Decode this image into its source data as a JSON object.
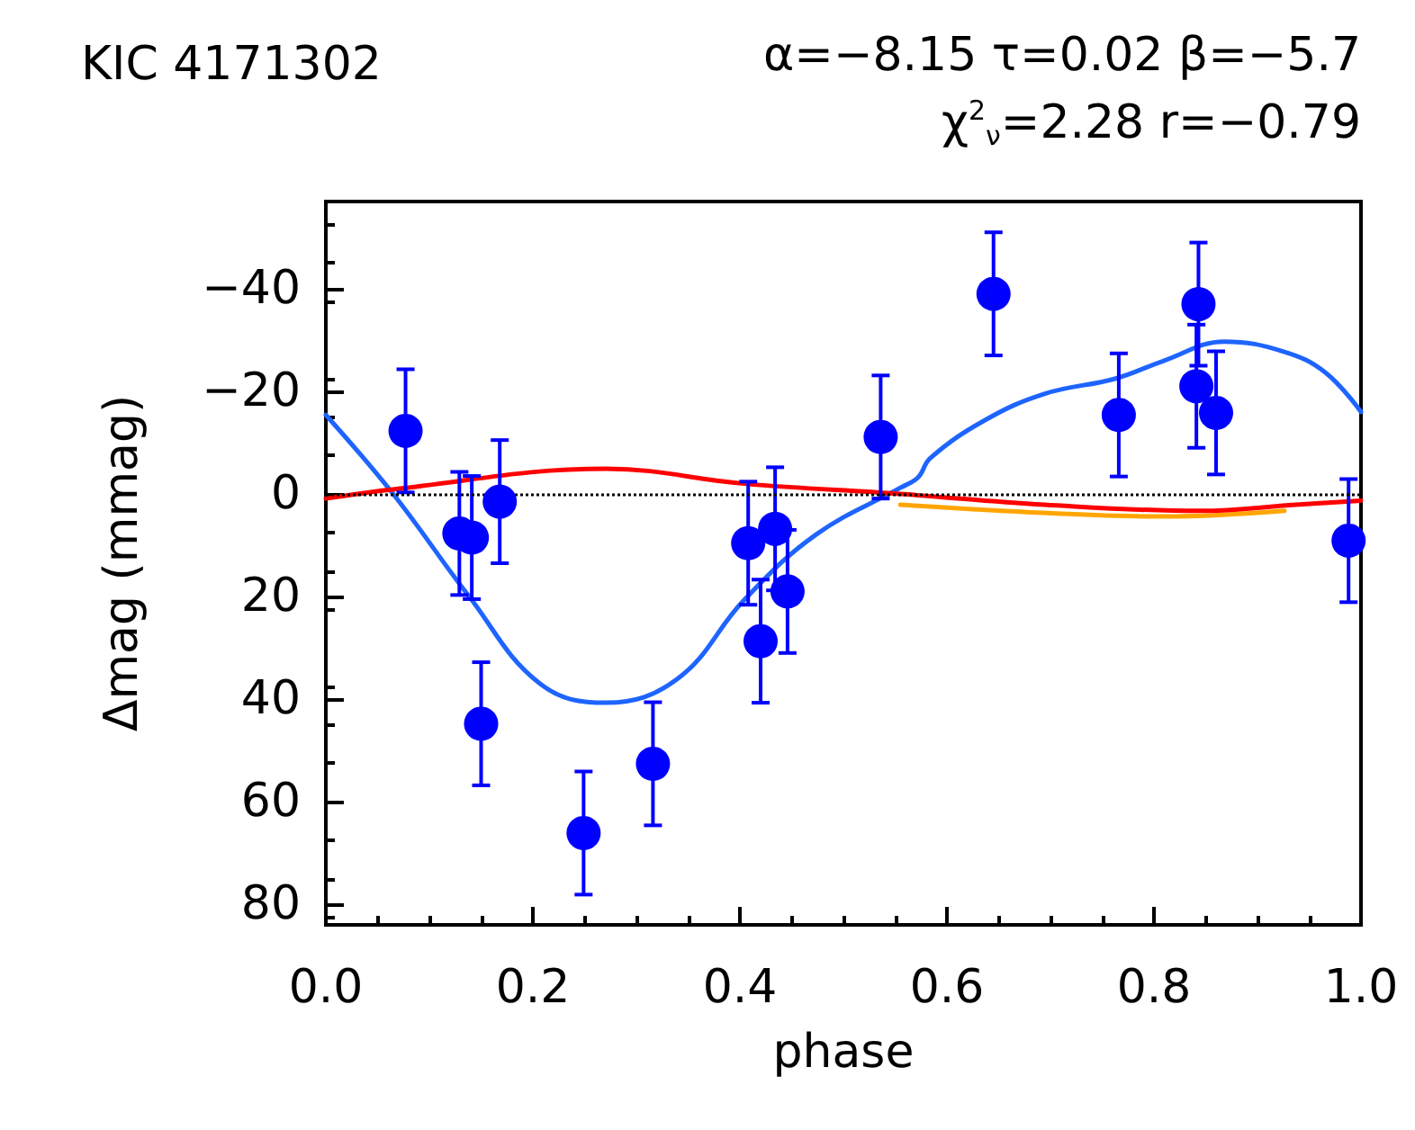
{
  "chart_data": {
    "type": "scatter",
    "title": "KIC 4171302",
    "annotations": [
      "α=−8.15 τ=0.02 β=−5.7",
      "χ$^{2}$$_{ν}$=2.28 r=−0.79"
    ],
    "xlabel": "phase",
    "ylabel": "Δmag (mmag)",
    "xlim": [
      0,
      1
    ],
    "xticks": [
      {
        "value": 0,
        "label": "0.0"
      },
      {
        "value": 0.2,
        "label": "0.2"
      },
      {
        "value": 0.4,
        "label": "0.4"
      },
      {
        "value": 0.6,
        "label": "0.6"
      },
      {
        "value": 0.8,
        "label": "0.8"
      },
      {
        "value": 1,
        "label": "1.0"
      }
    ],
    "ylim": [
      84,
      -57
    ],
    "yticks": [
      -40,
      -20,
      0,
      20,
      40,
      60,
      80
    ],
    "grid": false,
    "marker": "circle",
    "ref_lines": [
      {
        "axis": "y",
        "value": 0,
        "color": "#000000",
        "line_style": "dotted"
      }
    ],
    "series": [
      {
        "type": "line",
        "color": "#1e64ff",
        "marker": "none",
        "line_style": "solid",
        "x": [
          0,
          0.065,
          0.137,
          0.207,
          0.271,
          0.34,
          0.404,
          0.473,
          0.555,
          0.572,
          0.584,
          0.636,
          0.694,
          0.763,
          0.81,
          0.868,
          0.926,
          0.966,
          1.0
        ],
        "values": [
          -15.4,
          0,
          19.6,
          37,
          40.7,
          36,
          20.7,
          8,
          -1.2,
          -3.2,
          -7,
          -14.3,
          -19.5,
          -22.5,
          -26,
          -29.7,
          -27.7,
          -23.6,
          -16
        ]
      },
      {
        "type": "line",
        "color": "#ffa500",
        "marker": "none",
        "line_style": "solid",
        "x": [
          0.555,
          0.694,
          0.81,
          0.926
        ],
        "values": [
          2.1,
          3.7,
          4.4,
          3.3
        ]
      },
      {
        "type": "line",
        "color": "#ff0000",
        "marker": "none",
        "line_style": "solid",
        "x": [
          0,
          0.065,
          0.271,
          0.404,
          0.555,
          0.694,
          0.845,
          0.937,
          1.0
        ],
        "values": [
          0.9,
          -0.9,
          -4.9,
          -2,
          0,
          2.1,
          3.3,
          2.1,
          1.3
        ]
      },
      {
        "type": "scatter",
        "color": "#0000ff",
        "x": [
          0.077,
          0.129,
          0.141,
          0.15,
          0.168,
          0.249,
          0.316,
          0.408,
          0.42,
          0.434,
          0.446,
          0.536,
          0.645,
          0.766,
          0.841,
          0.843,
          0.86,
          0.988
        ],
        "values": [
          -12.3,
          7.7,
          8.5,
          44.8,
          1.5,
          66.1,
          52.6,
          9.6,
          28.7,
          6.8,
          19,
          -11.1,
          -39,
          -15.4,
          -21,
          -37,
          -15.8,
          9.1
        ],
        "errors": [
          12,
          12,
          12,
          12,
          12,
          12,
          12,
          12,
          12,
          12,
          12,
          12,
          12,
          12,
          12,
          12,
          12,
          12
        ]
      }
    ]
  }
}
